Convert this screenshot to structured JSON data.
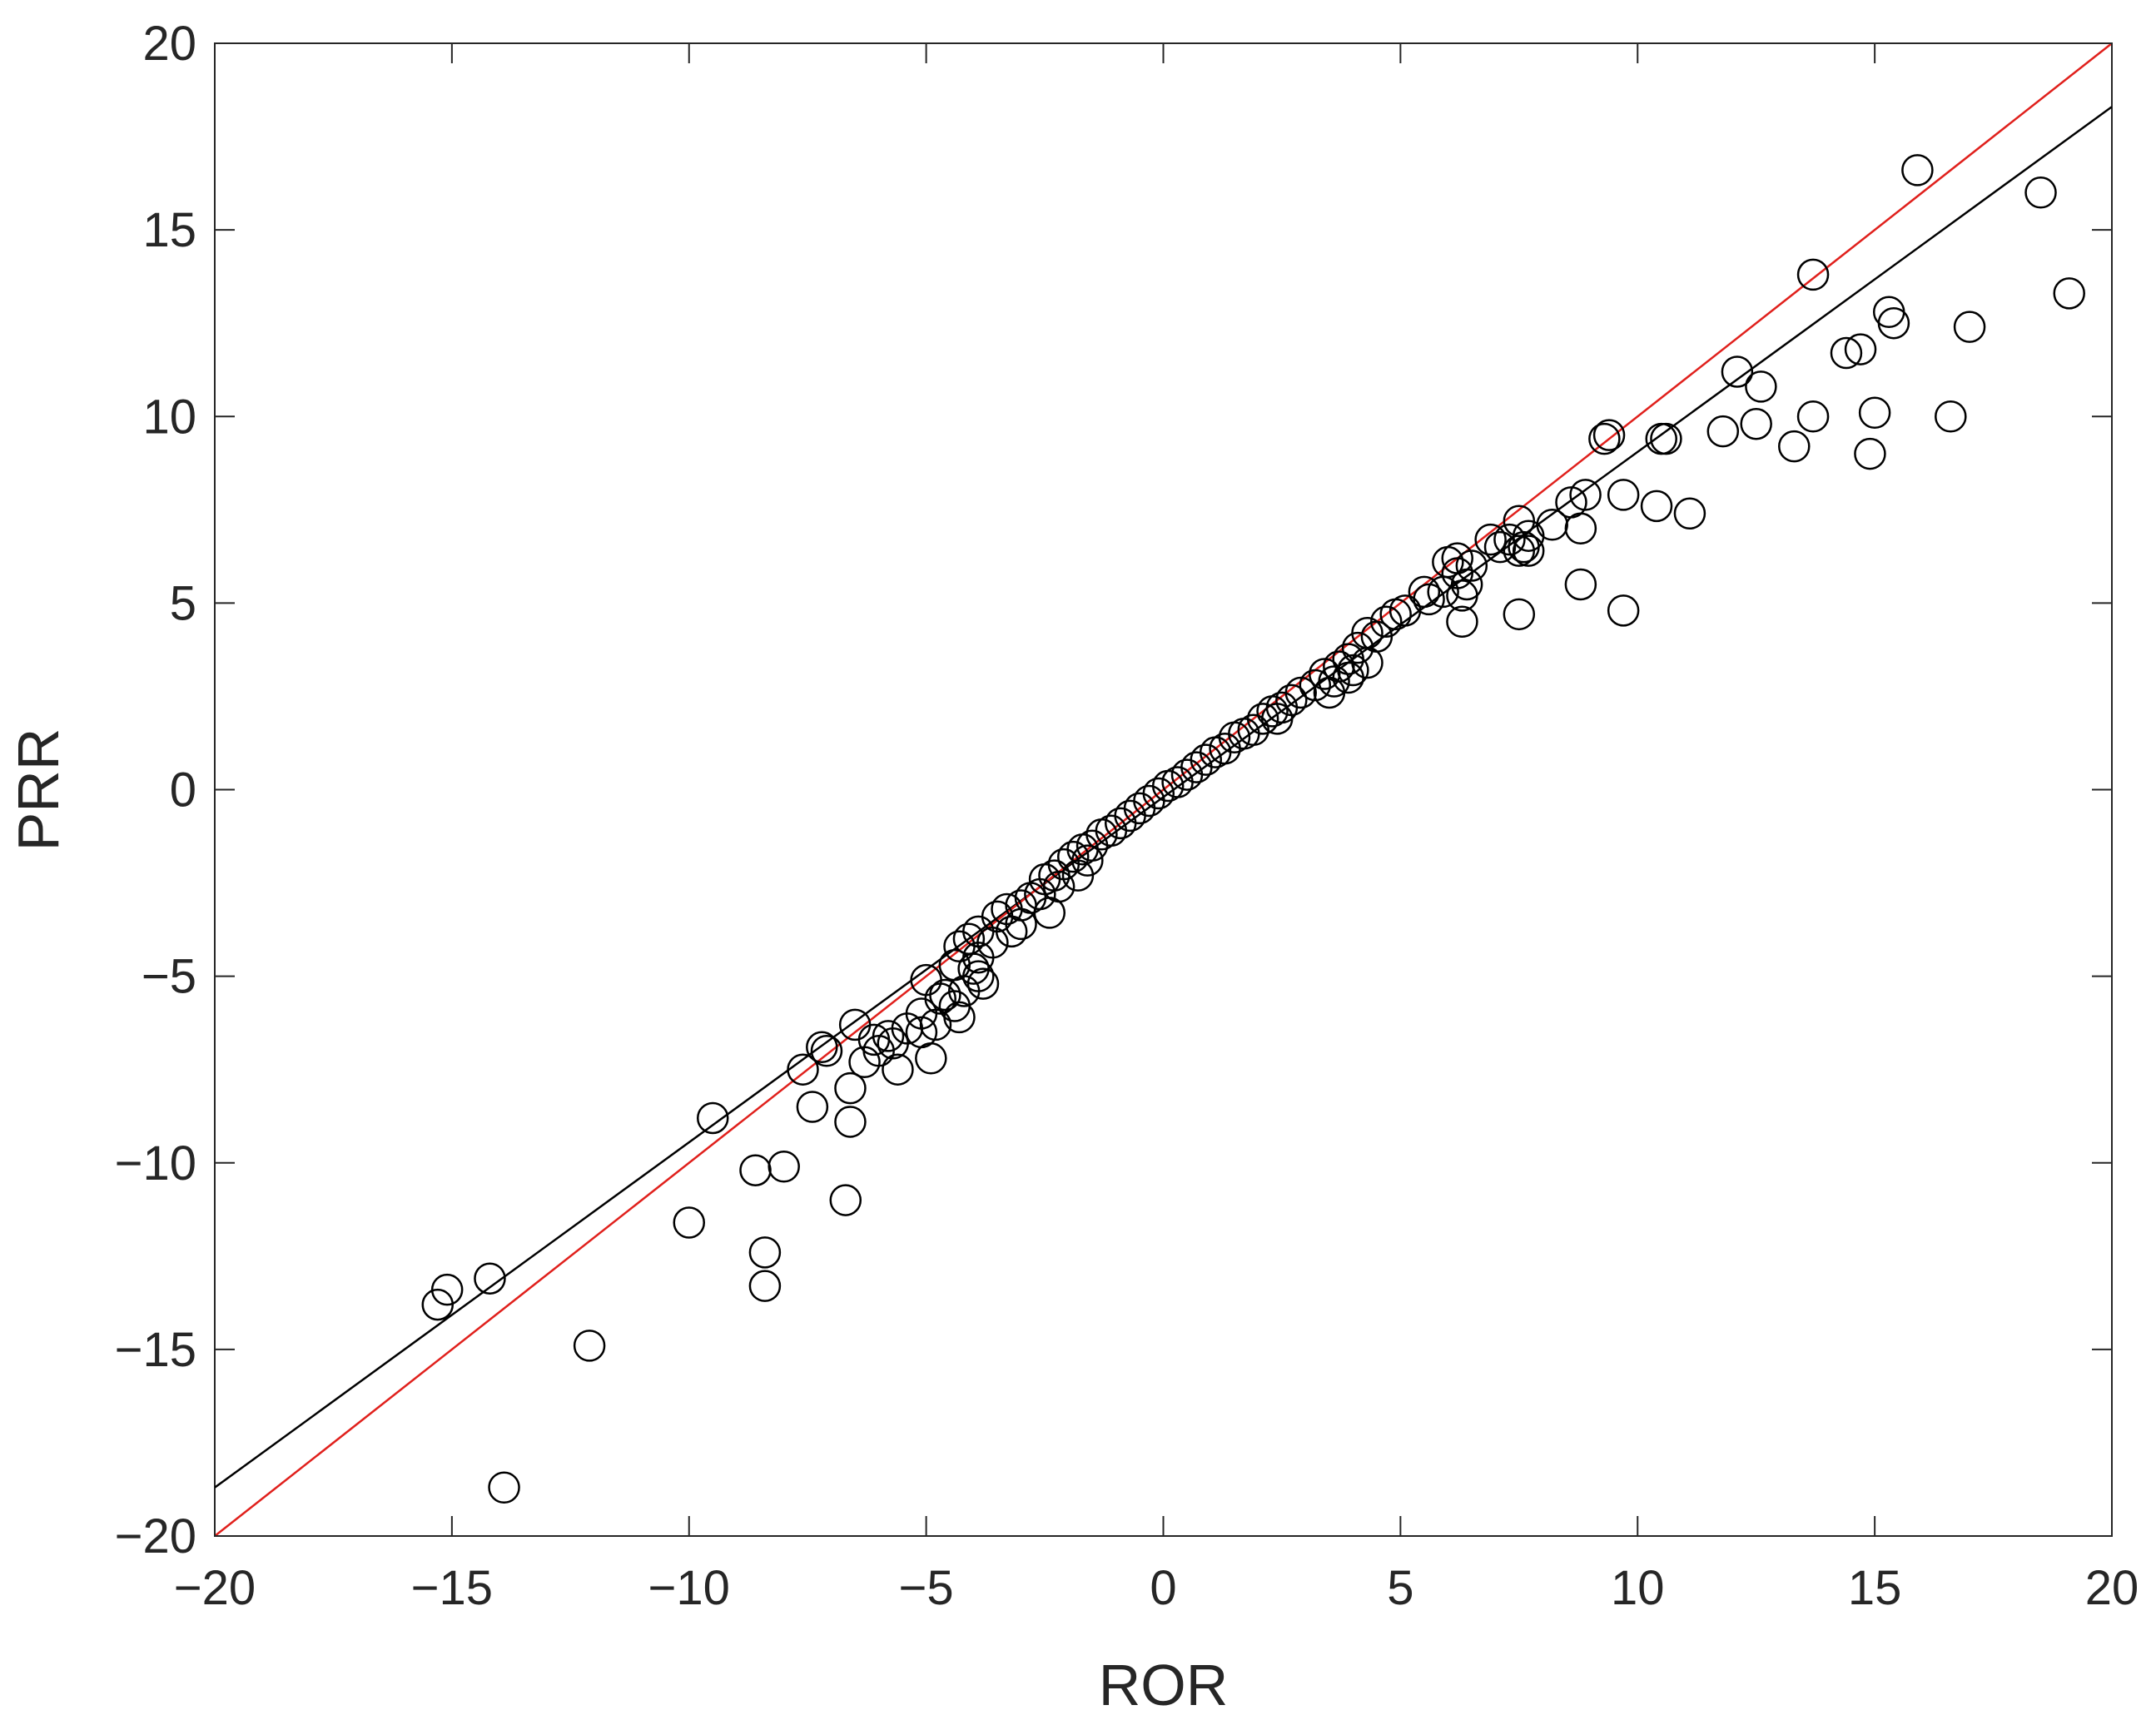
{
  "chart_data": {
    "type": "scatter",
    "title": "",
    "xlabel": "ROR",
    "ylabel": "PRR",
    "xlim": [
      -20,
      20
    ],
    "ylim": [
      -20,
      20
    ],
    "xticks": [
      -20,
      -15,
      -10,
      -5,
      0,
      5,
      10,
      15,
      20
    ],
    "yticks": [
      -20,
      -15,
      -10,
      -5,
      0,
      5,
      10,
      15,
      20
    ],
    "xtick_labels": [
      "−20",
      "−15",
      "−10",
      "−5",
      "0",
      "5",
      "10",
      "15",
      "20"
    ],
    "ytick_labels": [
      "−20",
      "−15",
      "−10",
      "−5",
      "0",
      "5",
      "10",
      "15",
      "20"
    ],
    "grid": false,
    "marker": "open-circle",
    "colors": {
      "points": "#000000",
      "fit_line": "#000000",
      "identity_line": "#e0201c",
      "axes": "#262626"
    },
    "lines": [
      {
        "type": "fit",
        "slope": 0.925,
        "intercept": -0.2
      },
      {
        "type": "identity",
        "slope": 1.0,
        "intercept": 0.0
      }
    ],
    "points": [
      [
        15.9,
        16.6
      ],
      [
        18.5,
        16.0
      ],
      [
        19.1,
        13.3
      ],
      [
        13.7,
        13.8
      ],
      [
        15.3,
        12.8
      ],
      [
        15.4,
        12.5
      ],
      [
        17.0,
        12.4
      ],
      [
        14.4,
        11.7
      ],
      [
        14.7,
        11.8
      ],
      [
        12.1,
        11.2
      ],
      [
        12.6,
        10.8
      ],
      [
        15.0,
        10.1
      ],
      [
        13.7,
        10.0
      ],
      [
        16.6,
        10.0
      ],
      [
        12.5,
        9.8
      ],
      [
        11.8,
        9.6
      ],
      [
        13.3,
        9.2
      ],
      [
        14.9,
        9.0
      ],
      [
        9.3,
        9.4
      ],
      [
        9.4,
        9.5
      ],
      [
        10.5,
        9.4
      ],
      [
        10.6,
        9.4
      ],
      [
        8.9,
        7.9
      ],
      [
        9.7,
        7.9
      ],
      [
        10.4,
        7.6
      ],
      [
        11.1,
        7.4
      ],
      [
        8.2,
        7.1
      ],
      [
        8.8,
        7.0
      ],
      [
        8.6,
        7.7
      ],
      [
        7.5,
        7.2
      ],
      [
        7.7,
        6.8
      ],
      [
        7.3,
        6.7
      ],
      [
        6.9,
        6.7
      ],
      [
        7.1,
        6.5
      ],
      [
        7.6,
        6.5
      ],
      [
        7.7,
        6.4
      ],
      [
        7.5,
        6.4
      ],
      [
        6.5,
        6.0
      ],
      [
        6.2,
        6.2
      ],
      [
        6.0,
        6.1
      ],
      [
        6.2,
        5.8
      ],
      [
        6.4,
        5.5
      ],
      [
        6.3,
        5.2
      ],
      [
        6.3,
        4.5
      ],
      [
        5.9,
        5.3
      ],
      [
        5.5,
        5.3
      ],
      [
        5.6,
        5.1
      ],
      [
        5.1,
        4.8
      ],
      [
        4.9,
        4.7
      ],
      [
        7.5,
        4.7
      ],
      [
        8.8,
        5.5
      ],
      [
        9.7,
        4.8
      ],
      [
        4.7,
        4.5
      ],
      [
        4.3,
        4.2
      ],
      [
        4.5,
        4.1
      ],
      [
        4.1,
        3.8
      ],
      [
        3.9,
        3.5
      ],
      [
        4.3,
        3.4
      ],
      [
        4.0,
        3.2
      ],
      [
        3.7,
        3.3
      ],
      [
        3.9,
        3.0
      ],
      [
        3.4,
        3.1
      ],
      [
        3.6,
        2.9
      ],
      [
        3.5,
        2.6
      ],
      [
        3.2,
        2.8
      ],
      [
        2.9,
        2.6
      ],
      [
        2.7,
        2.4
      ],
      [
        2.5,
        2.2
      ],
      [
        2.3,
        2.1
      ],
      [
        2.4,
        1.9
      ],
      [
        2.1,
        1.9
      ],
      [
        1.9,
        1.6
      ],
      [
        1.7,
        1.5
      ],
      [
        1.5,
        1.4
      ],
      [
        1.3,
        1.1
      ],
      [
        1.1,
        1.0
      ],
      [
        0.9,
        0.8
      ],
      [
        0.7,
        0.6
      ],
      [
        0.5,
        0.4
      ],
      [
        0.3,
        0.2
      ],
      [
        0.1,
        0.1
      ],
      [
        -0.1,
        -0.1
      ],
      [
        -0.3,
        -0.3
      ],
      [
        -0.5,
        -0.5
      ],
      [
        -0.7,
        -0.7
      ],
      [
        -0.9,
        -0.9
      ],
      [
        -1.1,
        -1.1
      ],
      [
        -1.3,
        -1.2
      ],
      [
        -1.5,
        -1.5
      ],
      [
        -1.7,
        -1.6
      ],
      [
        -1.6,
        -1.9
      ],
      [
        -1.9,
        -1.8
      ],
      [
        -2.1,
        -2.0
      ],
      [
        -1.8,
        -2.3
      ],
      [
        -2.3,
        -2.3
      ],
      [
        -2.5,
        -2.4
      ],
      [
        -2.2,
        -2.6
      ],
      [
        -2.6,
        -2.8
      ],
      [
        -2.8,
        -2.9
      ],
      [
        -3.0,
        -3.1
      ],
      [
        -2.4,
        -3.3
      ],
      [
        -3.3,
        -3.2
      ],
      [
        -3.5,
        -3.4
      ],
      [
        -3.0,
        -3.6
      ],
      [
        -3.2,
        -3.8
      ],
      [
        -3.9,
        -3.8
      ],
      [
        -4.1,
        -4.0
      ],
      [
        -3.6,
        -4.1
      ],
      [
        -4.3,
        -4.2
      ],
      [
        -3.9,
        -4.5
      ],
      [
        -4.0,
        -4.8
      ],
      [
        -4.4,
        -4.7
      ],
      [
        -3.9,
        -5.0
      ],
      [
        -3.8,
        -5.2
      ],
      [
        -4.2,
        -5.4
      ],
      [
        -4.6,
        -5.5
      ],
      [
        -5.0,
        -5.1
      ],
      [
        -4.7,
        -5.6
      ],
      [
        -4.4,
        -5.8
      ],
      [
        -5.1,
        -6.0
      ],
      [
        -4.3,
        -6.1
      ],
      [
        -4.8,
        -6.3
      ],
      [
        -5.4,
        -6.4
      ],
      [
        -5.1,
        -6.5
      ],
      [
        -5.8,
        -6.6
      ],
      [
        -6.1,
        -6.7
      ],
      [
        -5.7,
        -6.8
      ],
      [
        -6.5,
        -6.3
      ],
      [
        -6.0,
        -7.0
      ],
      [
        -6.3,
        -7.3
      ],
      [
        -5.6,
        -7.5
      ],
      [
        -4.9,
        -7.2
      ],
      [
        -7.1,
        -7.0
      ],
      [
        -7.2,
        -6.9
      ],
      [
        -7.6,
        -7.5
      ],
      [
        -6.6,
        -8.0
      ],
      [
        -7.4,
        -8.5
      ],
      [
        -6.6,
        -8.9
      ],
      [
        -9.5,
        -8.8
      ],
      [
        -8.6,
        -10.2
      ],
      [
        -8.0,
        -10.1
      ],
      [
        -6.7,
        -11.0
      ],
      [
        -10.0,
        -11.6
      ],
      [
        -8.4,
        -12.4
      ],
      [
        -8.4,
        -13.3
      ],
      [
        -14.2,
        -13.1
      ],
      [
        -15.1,
        -13.4
      ],
      [
        -15.3,
        -13.8
      ],
      [
        -12.1,
        -14.9
      ],
      [
        -13.9,
        -18.7
      ]
    ]
  }
}
